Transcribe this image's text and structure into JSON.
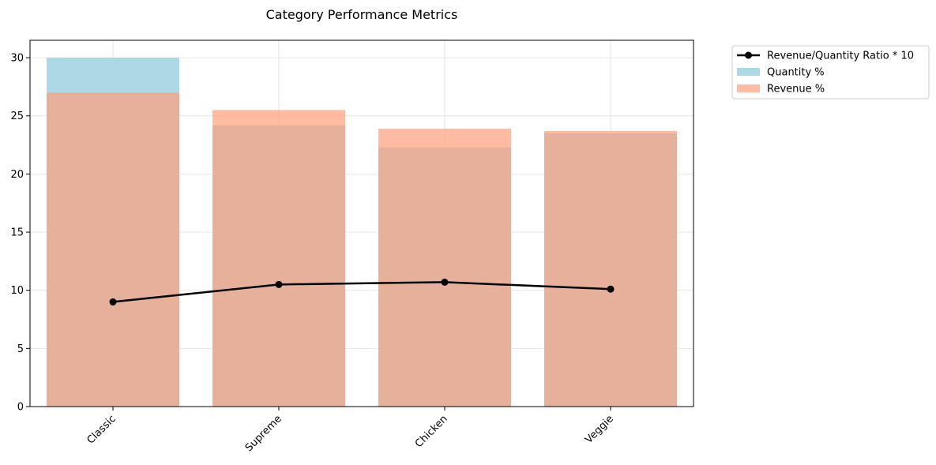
{
  "chart_data": {
    "type": "bar",
    "title": "Category Performance Metrics",
    "xlabel": "",
    "ylabel": "",
    "categories": [
      "Classic",
      "Supreme",
      "Chicken",
      "Veggie"
    ],
    "ylim": [
      0,
      31.5
    ],
    "yticks": [
      0,
      5,
      10,
      15,
      20,
      25,
      30
    ],
    "grid": true,
    "legend_position": "outside top-right",
    "series": [
      {
        "name": "Quantity %",
        "kind": "bar",
        "color": "#add8e6",
        "values": [
          30.0,
          24.2,
          22.3,
          23.5
        ]
      },
      {
        "name": "Revenue %",
        "kind": "bar",
        "color": "#ffa07a",
        "opacity": 0.7,
        "values": [
          27.0,
          25.5,
          23.9,
          23.7
        ]
      },
      {
        "name": "Revenue/Quantity Ratio * 10",
        "kind": "line",
        "color": "#000000",
        "marker": "circle",
        "values": [
          9.0,
          10.5,
          10.7,
          10.1
        ]
      }
    ],
    "legend": [
      "Revenue/Quantity Ratio * 10",
      "Quantity %",
      "Revenue %"
    ]
  }
}
